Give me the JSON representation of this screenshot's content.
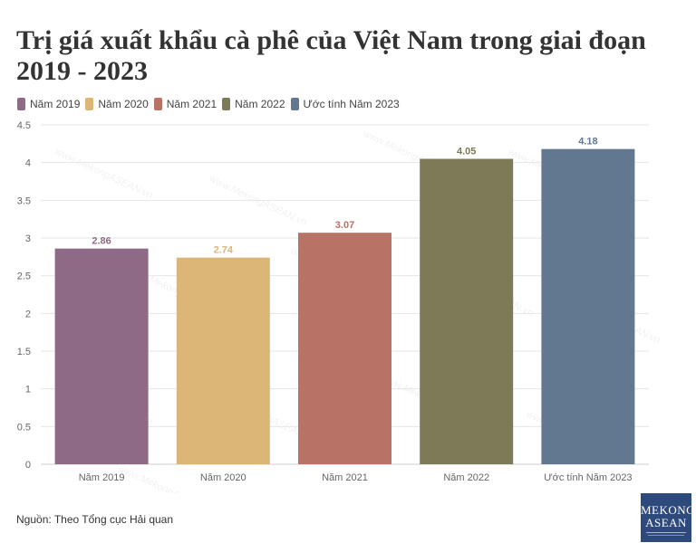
{
  "chart_data": {
    "type": "bar",
    "title": "Trị giá xuất khẩu cà phê của Việt Nam trong giai đoạn 2019 - 2023",
    "categories": [
      "Năm 2019",
      "Năm 2020",
      "Năm 2021",
      "Năm 2022",
      "Ước tính Năm 2023"
    ],
    "values": [
      2.86,
      2.74,
      3.07,
      4.05,
      4.18
    ],
    "data_labels": [
      "2.86",
      "2.74",
      "3.07",
      "4.05",
      "4.18"
    ],
    "colors": [
      "#8f6a86",
      "#dbb677",
      "#b87366",
      "#7d7a57",
      "#617890"
    ],
    "legend": [
      "Năm 2019",
      "Năm 2020",
      "Năm 2021",
      "Năm 2022",
      "Ước tính Năm 2023"
    ],
    "legend_position": "top-left",
    "ylim": [
      0,
      4.5
    ],
    "yticks": [
      "0",
      "0.5",
      "1",
      "1.5",
      "2",
      "2.5",
      "3",
      "3.5",
      "4",
      "4.5"
    ],
    "xlabel": "",
    "ylabel": "",
    "grid": true
  },
  "source": "Nguồn: Theo Tổng cục Hải quan",
  "watermark": "www.MekongASEAN.vn",
  "logo": {
    "top": "MEKONG",
    "bottom": "ASEAN",
    "color": "#2e4a7d"
  }
}
